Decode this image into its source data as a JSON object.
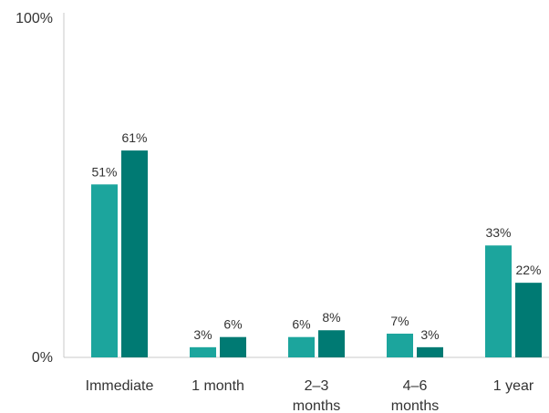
{
  "chart_data": {
    "type": "bar",
    "categories": [
      "Immediate",
      "1 month",
      "2–3 months",
      "4–6 months",
      "1 year"
    ],
    "category_lines": [
      [
        "Immediate"
      ],
      [
        "1 month"
      ],
      [
        "2–3",
        "months"
      ],
      [
        "4–6",
        "months"
      ],
      [
        "1 year"
      ]
    ],
    "series": [
      {
        "values": [
          51,
          3,
          6,
          7,
          33
        ],
        "labels": [
          "51%",
          "3%",
          "6%",
          "7%",
          "33%"
        ],
        "color": "#1ca59d"
      },
      {
        "values": [
          61,
          6,
          8,
          3,
          22
        ],
        "labels": [
          "61%",
          "6%",
          "8%",
          "3%",
          "22%"
        ],
        "color": "#007a73"
      }
    ],
    "ylim": [
      0,
      100
    ],
    "y_ticks": [
      {
        "value": 100,
        "label": "100%"
      },
      {
        "value": 0,
        "label": "0%"
      }
    ],
    "grid": false,
    "legend": "none"
  }
}
